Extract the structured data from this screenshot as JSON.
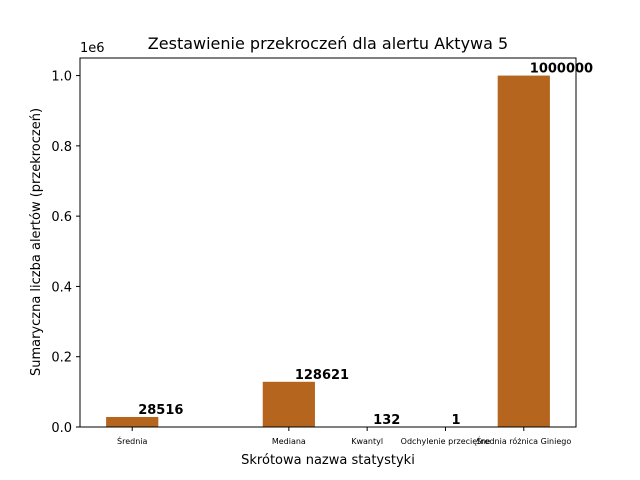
{
  "chart_data": {
    "type": "bar",
    "title": "Zestawienie przekroczeń dla alertu Aktywa 5",
    "xlabel": "Skrótowa nazwa statystyki",
    "ylabel": "Sumaryczna liczba alertów (przekroczeń)",
    "y_offset_label": "1e6",
    "categories": [
      "Średnia",
      "Mediana",
      "Kwantyl",
      "Odchylenie przeciętne",
      "Średnia różnica Giniego"
    ],
    "x_positions": [
      0,
      1.2,
      1.8,
      2.4,
      3.0
    ],
    "values": [
      28516,
      128621,
      132,
      1,
      1000000
    ],
    "value_labels": [
      "28516",
      "128621",
      "132",
      "1",
      "1000000"
    ],
    "ylim": [
      0,
      1050000
    ],
    "xlim": [
      -0.4,
      3.4
    ],
    "yticks": [
      0,
      200000,
      400000,
      600000,
      800000,
      1000000
    ],
    "ytick_labels": [
      "0.0",
      "0.2",
      "0.4",
      "0.6",
      "0.8",
      "1.0"
    ],
    "bar_width": 0.4,
    "bar_color": "#b5651d",
    "grid": false,
    "legend": "none"
  }
}
